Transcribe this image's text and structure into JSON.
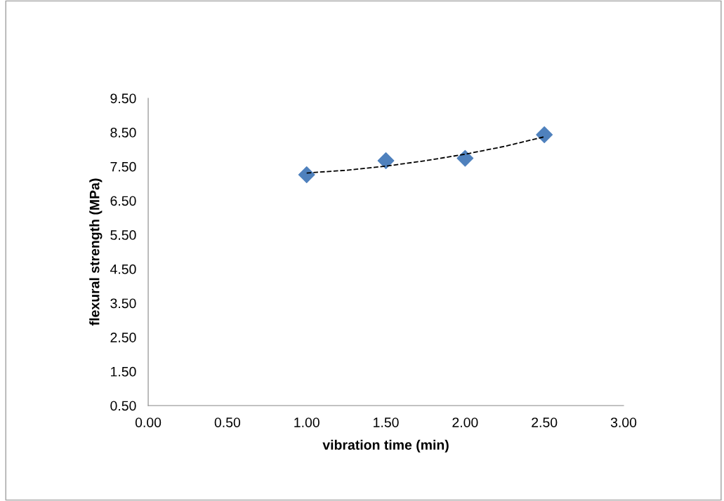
{
  "chart_data": {
    "type": "scatter",
    "xlabel": "vibration time (min)",
    "ylabel": "flexural strength (MPa)",
    "x": [
      1.0,
      1.5,
      2.0,
      2.5
    ],
    "series": [
      {
        "color": "#4f81bd",
        "marker": "diamond",
        "values": [
          7.26,
          7.67,
          7.74,
          8.43
        ]
      },
      {
        "type": "line",
        "color": "#000000",
        "line_style": "dashed",
        "marker": "none",
        "x": [
          1.0,
          1.25,
          1.5,
          1.75,
          2.0,
          2.25,
          2.5
        ],
        "values": [
          7.31,
          7.39,
          7.51,
          7.67,
          7.86,
          8.09,
          8.37
        ]
      }
    ],
    "xlim": [
      0,
      3
    ],
    "xticks": [
      {
        "value": 0,
        "label": "0.00"
      },
      {
        "value": 0.5,
        "label": "0.50"
      },
      {
        "value": 1,
        "label": "1.00"
      },
      {
        "value": 1.5,
        "label": "1.50"
      },
      {
        "value": 2,
        "label": "2.00"
      },
      {
        "value": 2.5,
        "label": "2.50"
      },
      {
        "value": 3,
        "label": "3.00"
      }
    ],
    "ylim": [
      0.5,
      9.5
    ],
    "yticks": [
      {
        "value": 0.5,
        "label": "0.50"
      },
      {
        "value": 1.5,
        "label": "1.50"
      },
      {
        "value": 2.5,
        "label": "2.50"
      },
      {
        "value": 3.5,
        "label": "3.50"
      },
      {
        "value": 4.5,
        "label": "4.50"
      },
      {
        "value": 5.5,
        "label": "5.50"
      },
      {
        "value": 6.5,
        "label": "6.50"
      },
      {
        "value": 7.5,
        "label": "7.50"
      },
      {
        "value": 8.5,
        "label": "8.50"
      },
      {
        "value": 9.5,
        "label": "9.50"
      }
    ],
    "grid": false,
    "legend": false
  }
}
